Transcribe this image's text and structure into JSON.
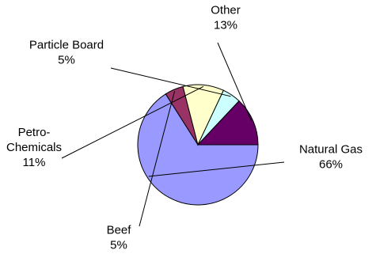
{
  "chart_data": {
    "type": "pie",
    "title": "",
    "start_angle_deg": 0,
    "direction": "clockwise",
    "slices": [
      {
        "label": "Natural Gas",
        "value": 66,
        "value_label": "66%",
        "color": "#9999ff"
      },
      {
        "label": "Beef",
        "value": 5,
        "value_label": "5%",
        "color": "#993366"
      },
      {
        "label": "Petro-Chemicals",
        "label_lines": [
          "Petro-",
          "Chemicals"
        ],
        "value": 11,
        "value_label": "11%",
        "color": "#ffffcc"
      },
      {
        "label": "Particle Board",
        "value": 5,
        "value_label": "5%",
        "color": "#ccffff"
      },
      {
        "label": "Other",
        "value": 13,
        "value_label": "13%",
        "color": "#660066"
      }
    ],
    "legend": "none"
  }
}
